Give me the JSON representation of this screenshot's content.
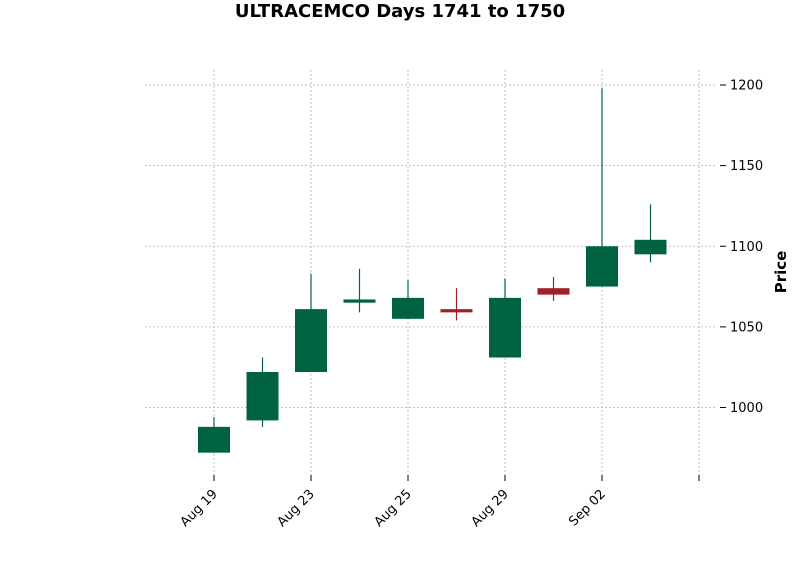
{
  "chart_data": {
    "type": "candlestick",
    "title": "ULTRACEMCO Days 1741 to 1750",
    "xlabel": "",
    "ylabel": "Price",
    "ylim": [
      960,
      1210
    ],
    "y_ticks": [
      1000,
      1050,
      1100,
      1150,
      1200
    ],
    "x_tick_labels": [
      "Aug 19",
      "Aug 23",
      "Aug 25",
      "Aug 29",
      "Sep 02",
      ""
    ],
    "x_tick_index": [
      0,
      2,
      4,
      6,
      8,
      10
    ],
    "grid": true,
    "colors": {
      "up": "#006340",
      "down": "#a02128",
      "grid": "#b0b0b0"
    },
    "candles": [
      {
        "open": 972,
        "high": 994,
        "low": 972,
        "close": 988
      },
      {
        "open": 992,
        "high": 1031,
        "low": 988,
        "close": 1022
      },
      {
        "open": 1022,
        "high": 1083,
        "low": 1022,
        "close": 1061
      },
      {
        "open": 1065,
        "high": 1086,
        "low": 1059,
        "close": 1067
      },
      {
        "open": 1055,
        "high": 1079,
        "low": 1055,
        "close": 1068
      },
      {
        "open": 1061,
        "high": 1074,
        "low": 1054,
        "close": 1059
      },
      {
        "open": 1031,
        "high": 1080,
        "low": 1031,
        "close": 1068
      },
      {
        "open": 1074,
        "high": 1081,
        "low": 1066,
        "close": 1070
      },
      {
        "open": 1075,
        "high": 1198,
        "low": 1075,
        "close": 1100
      },
      {
        "open": 1095,
        "high": 1126,
        "low": 1090,
        "close": 1104
      }
    ]
  }
}
